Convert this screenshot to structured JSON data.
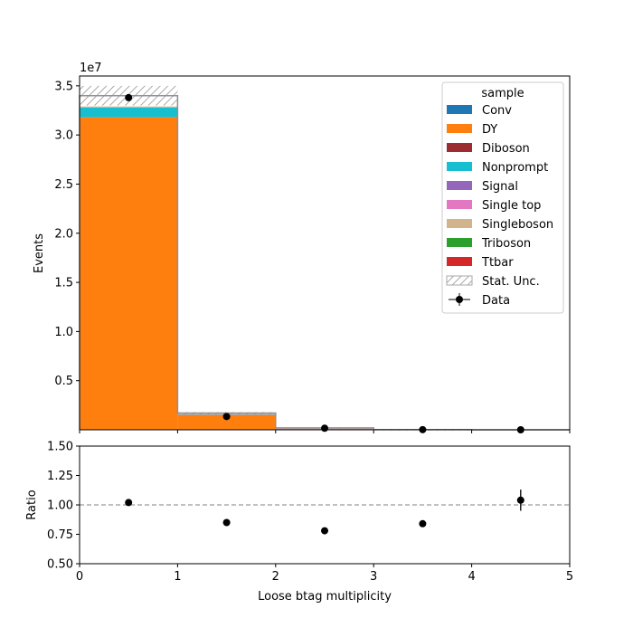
{
  "chart_data": [
    {
      "type": "bar",
      "stacked": true,
      "ylabel": "Events",
      "offset_label": "1e7",
      "ylim": [
        0,
        3.6
      ],
      "yticks": [
        "0.5",
        "1.0",
        "1.5",
        "2.0",
        "2.5",
        "3.0",
        "3.5"
      ],
      "yticks_values": [
        0.5,
        1.0,
        1.5,
        2.0,
        2.5,
        3.0,
        3.5
      ],
      "xlim": [
        0,
        5
      ],
      "bins": [
        [
          0,
          1
        ],
        [
          1,
          2
        ],
        [
          2,
          3
        ],
        [
          3,
          4
        ],
        [
          4,
          5
        ]
      ],
      "series": [
        {
          "name": "Conv",
          "color": "#1f77b4",
          "values": [
            0.0,
            0.0,
            0.0,
            0.0,
            0.0
          ]
        },
        {
          "name": "DY",
          "color": "#ff7f0e",
          "values": [
            3.18,
            0.15,
            0.01,
            0.001,
            0.0
          ]
        },
        {
          "name": "Diboson",
          "color": "#9b2d30",
          "values": [
            0.0,
            0.0,
            0.0,
            0.0,
            0.0
          ]
        },
        {
          "name": "Nonprompt",
          "color": "#17becf",
          "values": [
            0.1,
            0.005,
            0.001,
            0.0,
            0.0
          ]
        },
        {
          "name": "Signal",
          "color": "#9467bd",
          "values": [
            0.0,
            0.0,
            0.0,
            0.0,
            0.0
          ]
        },
        {
          "name": "Single top",
          "color": "#e377c2",
          "values": [
            0.0,
            0.0,
            0.002,
            0.0,
            0.0
          ]
        },
        {
          "name": "Singleboson",
          "color": "#d2b48c",
          "values": [
            0.01,
            0.0,
            0.0,
            0.0,
            0.0
          ]
        },
        {
          "name": "Triboson",
          "color": "#2ca02c",
          "values": [
            0.0,
            0.0,
            0.0,
            0.0,
            0.0
          ]
        },
        {
          "name": "Ttbar",
          "color": "#d62728",
          "values": [
            0.0,
            0.005,
            0.008,
            0.001,
            0.0
          ]
        }
      ],
      "uncertainty": {
        "name": "Stat. Unc.",
        "totals": [
          3.4,
          0.17,
          0.02,
          0.002,
          0.0
        ],
        "errors": [
          0.1,
          0.01,
          0.002,
          0.0005,
          0.0
        ]
      },
      "data": {
        "name": "Data",
        "x": [
          0.5,
          1.5,
          2.5,
          3.5,
          4.5
        ],
        "y": [
          3.38,
          0.135,
          0.016,
          0.0017,
          0.0001
        ]
      },
      "legend": {
        "title": "sample",
        "position": "top-right"
      }
    },
    {
      "type": "scatter",
      "xlabel": "Loose btag multiplicity",
      "ylabel": "Ratio",
      "xlim": [
        0,
        5
      ],
      "ylim": [
        0.5,
        1.5
      ],
      "xticks": [
        "0",
        "1",
        "2",
        "3",
        "4",
        "5"
      ],
      "xticks_values": [
        0,
        1,
        2,
        3,
        4,
        5
      ],
      "yticks": [
        "0.50",
        "0.75",
        "1.00",
        "1.25",
        "1.50"
      ],
      "yticks_values": [
        0.5,
        0.75,
        1.0,
        1.25,
        1.5
      ],
      "reference_line": 1.0,
      "x": [
        0.5,
        1.5,
        2.5,
        3.5,
        4.5
      ],
      "y": [
        1.02,
        0.85,
        0.78,
        0.84,
        1.04
      ],
      "yerr": [
        0.0,
        0.0,
        0.0,
        0.0,
        0.09
      ]
    }
  ]
}
